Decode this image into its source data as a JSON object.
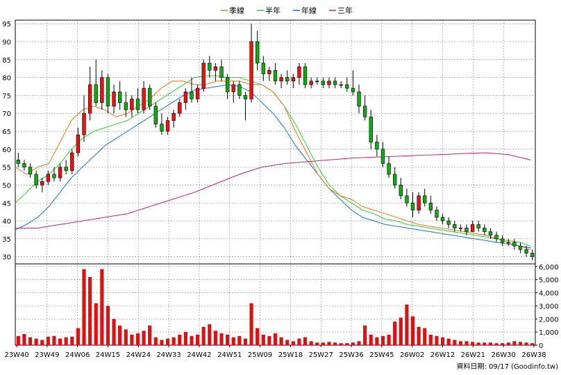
{
  "chart_data": {
    "type": "candlestick",
    "title": "",
    "legend": {
      "placement": "top-center",
      "items": [
        {
          "label": "季線",
          "color": "#e07a2a"
        },
        {
          "label": "半年",
          "color": "#33cc33"
        },
        {
          "label": "年線",
          "color": "#1f6fd1"
        },
        {
          "label": "三年",
          "color": "#c0266b"
        }
      ]
    },
    "price_axis": {
      "position": "left",
      "ylim": [
        28,
        96
      ],
      "ticks": [
        30,
        35,
        40,
        45,
        50,
        55,
        60,
        65,
        70,
        75,
        80,
        85,
        90,
        95
      ]
    },
    "volume_axis": {
      "position": "right",
      "ylim": [
        0,
        6200
      ],
      "ticks": [
        0,
        1000,
        2000,
        3000,
        4000,
        5000,
        6000
      ],
      "tick_labels": [
        "0",
        "1,000",
        "2,000",
        "3,000",
        "4,000",
        "5,000",
        "6,000"
      ]
    },
    "x_axis": {
      "labels": [
        "23W40",
        "23W49",
        "24W06",
        "24W15",
        "24W24",
        "24W33",
        "24W42",
        "24W51",
        "25W09",
        "25W18",
        "25W27",
        "25W36",
        "25W45",
        "26W02",
        "26W12",
        "26W21",
        "26W30",
        "26W38"
      ]
    },
    "grid": true,
    "colors": {
      "up": "#ee1111",
      "down": "#11aa11",
      "volume": "#dd1111",
      "grid": "#808080"
    },
    "ma_quarter": [
      [
        0,
        55
      ],
      [
        5,
        53
      ],
      [
        10,
        55
      ],
      [
        15,
        56
      ],
      [
        20,
        62
      ],
      [
        25,
        68
      ],
      [
        30,
        71
      ],
      [
        35,
        72
      ],
      [
        40,
        71
      ],
      [
        45,
        69
      ],
      [
        50,
        70
      ],
      [
        55,
        72
      ],
      [
        60,
        74
      ],
      [
        65,
        77
      ],
      [
        70,
        79
      ],
      [
        75,
        79
      ],
      [
        80,
        78
      ],
      [
        85,
        78
      ],
      [
        90,
        79
      ],
      [
        95,
        79
      ],
      [
        100,
        79
      ],
      [
        105,
        78
      ],
      [
        110,
        78
      ],
      [
        115,
        76
      ],
      [
        120,
        72
      ],
      [
        125,
        65
      ],
      [
        130,
        59
      ],
      [
        135,
        53
      ],
      [
        140,
        49
      ],
      [
        145,
        47
      ],
      [
        150,
        46
      ],
      [
        155,
        44
      ],
      [
        160,
        43
      ],
      [
        165,
        42
      ],
      [
        170,
        41
      ],
      [
        175,
        40
      ],
      [
        180,
        39
      ],
      [
        185,
        38.5
      ],
      [
        190,
        38
      ],
      [
        195,
        37.5
      ],
      [
        200,
        37
      ],
      [
        205,
        36.5
      ],
      [
        210,
        36
      ],
      [
        215,
        35
      ],
      [
        220,
        34
      ],
      [
        225,
        33
      ],
      [
        230,
        32
      ]
    ],
    "ma_half": [
      [
        0,
        45
      ],
      [
        5,
        48
      ],
      [
        10,
        51
      ],
      [
        15,
        53
      ],
      [
        20,
        56
      ],
      [
        25,
        60
      ],
      [
        30,
        63
      ],
      [
        35,
        65
      ],
      [
        40,
        66
      ],
      [
        45,
        67
      ],
      [
        50,
        68
      ],
      [
        55,
        70
      ],
      [
        60,
        72
      ],
      [
        65,
        74
      ],
      [
        70,
        76
      ],
      [
        75,
        78
      ],
      [
        80,
        80
      ],
      [
        85,
        80.5
      ],
      [
        90,
        80.5
      ],
      [
        95,
        80
      ],
      [
        100,
        80
      ],
      [
        105,
        79
      ],
      [
        110,
        78
      ],
      [
        115,
        76
      ],
      [
        120,
        72
      ],
      [
        125,
        67
      ],
      [
        130,
        61
      ],
      [
        135,
        55
      ],
      [
        140,
        50
      ],
      [
        145,
        47
      ],
      [
        150,
        45
      ],
      [
        155,
        43
      ],
      [
        160,
        42
      ],
      [
        165,
        40.5
      ],
      [
        170,
        40
      ],
      [
        175,
        39
      ],
      [
        180,
        38.5
      ],
      [
        185,
        38
      ],
      [
        190,
        37.5
      ],
      [
        195,
        37
      ],
      [
        200,
        36.5
      ],
      [
        205,
        36
      ],
      [
        210,
        35.5
      ],
      [
        215,
        35
      ],
      [
        220,
        34.5
      ],
      [
        225,
        34
      ],
      [
        230,
        33
      ]
    ],
    "ma_year": [
      [
        0,
        37.5
      ],
      [
        5,
        39
      ],
      [
        10,
        41
      ],
      [
        15,
        44
      ],
      [
        20,
        48
      ],
      [
        25,
        52
      ],
      [
        30,
        55
      ],
      [
        35,
        58
      ],
      [
        40,
        61
      ],
      [
        45,
        63
      ],
      [
        50,
        65
      ],
      [
        55,
        67
      ],
      [
        60,
        69
      ],
      [
        65,
        71
      ],
      [
        70,
        73
      ],
      [
        75,
        75
      ],
      [
        80,
        76.5
      ],
      [
        85,
        77
      ],
      [
        90,
        77.5
      ],
      [
        95,
        78
      ],
      [
        100,
        77.5
      ],
      [
        105,
        76
      ],
      [
        110,
        73
      ],
      [
        115,
        70
      ],
      [
        120,
        66
      ],
      [
        125,
        61
      ],
      [
        130,
        57
      ],
      [
        135,
        53
      ],
      [
        140,
        49
      ],
      [
        145,
        46
      ],
      [
        150,
        43
      ],
      [
        155,
        41
      ],
      [
        160,
        40
      ],
      [
        165,
        39
      ],
      [
        170,
        38.5
      ],
      [
        175,
        38
      ],
      [
        180,
        37.5
      ],
      [
        185,
        37
      ],
      [
        190,
        36.5
      ],
      [
        195,
        36
      ],
      [
        200,
        35.5
      ],
      [
        205,
        35
      ],
      [
        210,
        34.5
      ],
      [
        215,
        34
      ],
      [
        220,
        33.5
      ],
      [
        225,
        33
      ],
      [
        230,
        32.5
      ]
    ],
    "ma_3year": [
      [
        0,
        38
      ],
      [
        10,
        38
      ],
      [
        20,
        39
      ],
      [
        30,
        40
      ],
      [
        40,
        41
      ],
      [
        50,
        42
      ],
      [
        60,
        44
      ],
      [
        70,
        46
      ],
      [
        80,
        48
      ],
      [
        90,
        50.5
      ],
      [
        100,
        53
      ],
      [
        110,
        55
      ],
      [
        120,
        56
      ],
      [
        130,
        56.5
      ],
      [
        140,
        57
      ],
      [
        150,
        57.5
      ],
      [
        160,
        57.8
      ],
      [
        170,
        58
      ],
      [
        180,
        58.3
      ],
      [
        190,
        58.5
      ],
      [
        200,
        58.8
      ],
      [
        210,
        59
      ],
      [
        220,
        58.5
      ],
      [
        230,
        57
      ]
    ],
    "candles": [
      [
        0,
        57,
        59,
        55,
        56,
        3
      ],
      [
        1,
        56,
        57,
        54,
        55,
        3
      ],
      [
        2,
        55,
        56,
        52,
        53,
        3
      ],
      [
        3,
        53,
        54,
        49,
        50,
        3
      ],
      [
        4,
        50,
        52,
        48,
        51,
        2
      ],
      [
        5,
        51,
        54,
        50,
        53,
        3
      ],
      [
        6,
        53,
        55,
        51,
        52,
        3
      ],
      [
        7,
        52,
        56,
        51,
        55,
        2
      ],
      [
        8,
        55,
        57,
        53,
        54,
        3
      ],
      [
        9,
        54,
        60,
        53,
        59,
        3
      ],
      [
        10,
        59,
        66,
        58,
        64,
        3
      ],
      [
        11,
        64,
        75,
        62,
        70,
        6
      ],
      [
        12,
        70,
        83,
        68,
        78,
        5
      ],
      [
        13,
        78,
        85,
        72,
        73,
        5
      ],
      [
        14,
        73,
        82,
        71,
        80,
        5
      ],
      [
        15,
        80,
        81,
        70,
        72,
        4
      ],
      [
        16,
        72,
        78,
        70,
        76,
        6
      ],
      [
        17,
        76,
        79,
        71,
        73,
        4
      ],
      [
        18,
        73,
        76,
        69,
        71,
        3
      ],
      [
        19,
        71,
        75,
        69,
        74,
        3
      ],
      [
        20,
        74,
        77,
        70,
        71,
        3
      ],
      [
        21,
        71,
        79,
        70,
        77,
        4
      ],
      [
        22,
        77,
        78,
        71,
        72,
        3
      ],
      [
        23,
        72,
        73,
        66,
        67,
        3
      ],
      [
        24,
        67,
        70,
        64,
        65,
        2
      ],
      [
        25,
        65,
        69,
        64,
        68,
        3
      ],
      [
        26,
        68,
        71,
        66,
        70,
        3
      ],
      [
        27,
        70,
        74,
        69,
        73,
        3
      ],
      [
        28,
        73,
        77,
        71,
        76,
        3
      ],
      [
        29,
        76,
        80,
        73,
        74,
        2
      ],
      [
        30,
        74,
        78,
        73,
        77,
        3
      ],
      [
        31,
        77,
        85,
        76,
        84,
        3
      ],
      [
        32,
        84,
        86,
        80,
        82,
        4
      ],
      [
        33,
        82,
        84,
        79,
        83,
        3
      ],
      [
        34,
        83,
        85,
        79,
        80,
        3
      ],
      [
        35,
        80,
        81,
        74,
        76,
        3
      ],
      [
        36,
        76,
        79,
        73,
        78,
        3
      ],
      [
        37,
        78,
        79,
        74,
        75,
        3
      ],
      [
        38,
        75,
        76,
        68,
        74,
        3
      ],
      [
        39,
        74,
        95,
        73,
        90,
        6
      ],
      [
        40,
        90,
        93,
        82,
        84,
        4
      ],
      [
        41,
        84,
        86,
        79,
        81,
        4
      ],
      [
        42,
        81,
        83,
        79,
        82,
        4
      ],
      [
        43,
        82,
        84,
        78,
        79,
        3
      ],
      [
        44,
        79,
        81,
        77,
        80,
        3
      ],
      [
        45,
        80,
        82,
        78,
        79,
        3
      ],
      [
        46,
        79,
        81,
        77,
        80,
        3
      ],
      [
        47,
        80,
        84,
        78,
        83,
        3
      ],
      [
        48,
        83,
        84,
        77,
        78,
        3
      ],
      [
        49,
        78,
        80,
        77,
        79,
        2
      ],
      [
        50,
        79,
        80,
        78,
        79,
        2
      ],
      [
        51,
        79,
        80,
        77,
        78,
        2
      ],
      [
        52,
        78,
        80,
        77,
        79,
        2
      ],
      [
        53,
        79,
        80,
        77,
        78,
        2
      ],
      [
        54,
        78,
        79,
        77,
        78,
        2
      ],
      [
        55,
        78,
        80,
        76,
        77,
        2
      ],
      [
        56,
        77,
        82,
        75,
        76,
        3
      ],
      [
        57,
        76,
        78,
        70,
        72,
        2
      ],
      [
        58,
        72,
        75,
        68,
        69,
        2
      ],
      [
        59,
        69,
        71,
        60,
        62,
        2
      ],
      [
        60,
        62,
        64,
        58,
        60,
        3
      ],
      [
        61,
        60,
        62,
        55,
        56,
        2
      ],
      [
        62,
        56,
        58,
        52,
        53,
        3
      ],
      [
        63,
        53,
        55,
        49,
        50,
        2
      ],
      [
        64,
        50,
        52,
        46,
        47,
        2
      ],
      [
        65,
        47,
        49,
        44,
        45,
        2
      ],
      [
        66,
        45,
        48,
        41,
        43,
        3
      ],
      [
        67,
        43,
        48,
        42,
        47,
        2
      ],
      [
        68,
        47,
        49,
        44,
        45,
        2
      ],
      [
        69,
        45,
        47,
        42,
        43,
        2
      ],
      [
        70,
        43,
        44,
        40,
        41,
        2
      ],
      [
        71,
        41,
        42,
        39,
        40,
        2
      ],
      [
        72,
        40,
        41,
        38,
        39,
        1
      ],
      [
        73,
        39,
        40,
        37,
        38,
        1
      ],
      [
        74,
        38,
        39,
        37,
        38,
        1
      ],
      [
        75,
        38,
        39,
        36,
        37,
        1
      ],
      [
        76,
        37,
        40,
        37,
        39,
        1
      ],
      [
        77,
        39,
        40,
        37,
        38,
        1
      ],
      [
        78,
        38,
        39,
        36,
        37,
        1
      ],
      [
        79,
        37,
        38,
        35,
        36,
        1
      ],
      [
        80,
        36,
        37,
        34,
        35,
        1
      ],
      [
        81,
        35,
        36,
        33,
        34,
        1
      ],
      [
        82,
        34,
        35,
        33,
        34,
        1
      ],
      [
        83,
        34,
        35,
        32,
        33,
        1
      ],
      [
        84,
        33,
        34,
        31,
        32,
        1
      ],
      [
        85,
        32,
        33,
        30,
        31,
        1
      ],
      [
        86,
        31,
        32,
        29,
        30,
        1
      ]
    ],
    "volume_weekly": [
      700,
      850,
      600,
      500,
      400,
      650,
      700,
      500,
      600,
      650,
      1300,
      5800,
      5200,
      3200,
      5800,
      3000,
      2000,
      1500,
      1200,
      800,
      900,
      1100,
      1500,
      600,
      400,
      500,
      600,
      800,
      1000,
      700,
      800,
      1400,
      1600,
      1100,
      900,
      800,
      600,
      700,
      500,
      3200,
      1300,
      800,
      700,
      900,
      600,
      400,
      300,
      500,
      600,
      300,
      200,
      200,
      250,
      200,
      150,
      150,
      200,
      300,
      1500,
      800,
      600,
      700,
      800,
      1800,
      2100,
      3100,
      2200,
      1400,
      1300,
      800,
      700,
      600,
      500,
      400,
      300,
      300,
      250,
      200,
      200,
      200,
      150,
      150,
      200,
      300,
      250,
      200,
      150
    ]
  },
  "footer": {
    "label": "資料日期: 09/17  (Goodinfo.tw)"
  }
}
